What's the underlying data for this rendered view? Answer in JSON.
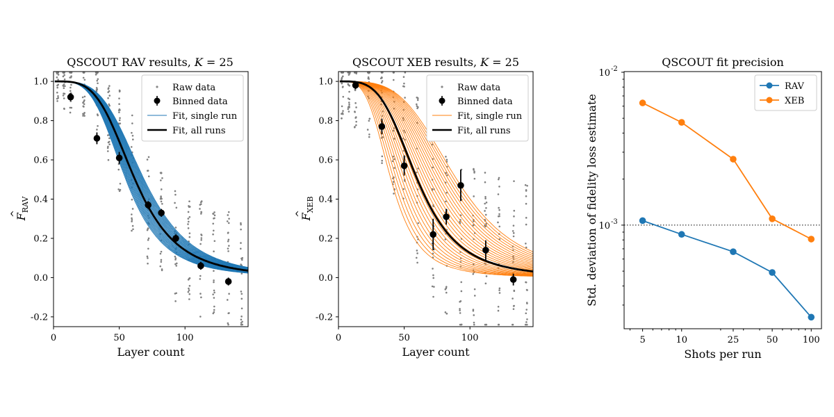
{
  "chart_data": [
    {
      "type": "scatter",
      "title": "QSCOUT RAV results, K = 25",
      "title_main": "QSCOUT RAV results, ",
      "title_k": "K",
      "title_tail": " = 25",
      "xlabel": "Layer count",
      "ylabel_base": "F",
      "ylabel_sub": "RAV",
      "xlim": [
        0,
        148
      ],
      "ylim": [
        -0.25,
        1.05
      ],
      "xticks": [
        0,
        50,
        100
      ],
      "xtick_labels": [
        "0",
        "50",
        "100"
      ],
      "yticks": [
        -0.2,
        0.0,
        0.2,
        0.4,
        0.6,
        0.8,
        1.0
      ],
      "ytick_labels": [
        "-0.2",
        "0.0",
        "0.2",
        "0.4",
        "0.6",
        "0.8",
        "1.0"
      ],
      "fit_color": "#1f77b4",
      "legend": [
        "Raw data",
        "Binned data",
        "Fit, single run",
        "Fit, all runs"
      ],
      "binned": {
        "x": [
          13,
          33,
          50,
          72,
          82,
          93,
          112,
          133
        ],
        "y": [
          0.92,
          0.71,
          0.61,
          0.37,
          0.33,
          0.2,
          0.06,
          -0.02
        ],
        "err": [
          0.02,
          0.03,
          0.03,
          0.02,
          0.02,
          0.02,
          0.02,
          0.02
        ]
      },
      "fit_all": {
        "x0": 62,
        "s": 1.9
      },
      "fit_single": {
        "x0_min": 55,
        "x0_max": 69,
        "count": 25,
        "s": 1.9
      },
      "raw_x": [
        3,
        8,
        13,
        23,
        33,
        42,
        50,
        60,
        72,
        82,
        93,
        103,
        112,
        122,
        133,
        143
      ],
      "raw_noise": 0.3
    },
    {
      "type": "scatter",
      "title": "QSCOUT XEB results, K = 25",
      "title_main": "QSCOUT XEB results, ",
      "title_k": "K",
      "title_tail": " = 25",
      "xlabel": "Layer count",
      "ylabel_base": "F",
      "ylabel_sub": "XEB",
      "xlim": [
        0,
        148
      ],
      "ylim": [
        -0.25,
        1.05
      ],
      "xticks": [
        0,
        50,
        100
      ],
      "xtick_labels": [
        "0",
        "50",
        "100"
      ],
      "yticks": [
        -0.2,
        0.0,
        0.2,
        0.4,
        0.6,
        0.8,
        1.0
      ],
      "ytick_labels": [
        "-0.2",
        "0.0",
        "0.2",
        "0.4",
        "0.6",
        "0.8",
        "1.0"
      ],
      "fit_color": "#ff7f0e",
      "legend": [
        "Raw data",
        "Binned data",
        "Fit, single run",
        "Fit, all runs"
      ],
      "binned": {
        "x": [
          13,
          33,
          50,
          72,
          82,
          93,
          112,
          133
        ],
        "y": [
          0.98,
          0.77,
          0.57,
          0.22,
          0.31,
          0.47,
          0.14,
          -0.01
        ],
        "err": [
          0.02,
          0.04,
          0.05,
          0.08,
          0.04,
          0.08,
          0.05,
          0.03
        ]
      },
      "fit_all": {
        "x0": 60,
        "s": 1.9
      },
      "fit_single": {
        "x0_min": 40,
        "x0_max": 90,
        "count": 25,
        "s": 1.9
      },
      "raw_x": [
        3,
        8,
        13,
        23,
        33,
        42,
        50,
        60,
        72,
        82,
        93,
        103,
        112,
        122,
        133,
        143
      ],
      "raw_noise": 0.45
    },
    {
      "type": "line",
      "title": "QSCOUT fit precision",
      "xlabel": "Shots per run",
      "ylabel": "Std. deviation of fidelity loss estimate",
      "xscale": "log",
      "yscale": "log",
      "xlim": [
        3.6,
        120
      ],
      "ylim": [
        0.00021,
        0.0101
      ],
      "x": [
        5,
        10,
        25,
        50,
        100
      ],
      "xtick_labels": [
        "5",
        "10",
        "25",
        "50",
        "100"
      ],
      "ytick_labels": [
        {
          "base": "10",
          "exp": "-3"
        },
        {
          "base": "10",
          "exp": "-2"
        }
      ],
      "reference_line": 0.001,
      "legend_position": "top-right",
      "series": [
        {
          "name": "RAV",
          "color": "#1f77b4",
          "values": [
            0.00107,
            0.00087,
            0.00067,
            0.00049,
            0.00025
          ]
        },
        {
          "name": "XEB",
          "color": "#ff7f0e",
          "values": [
            0.0063,
            0.0047,
            0.0027,
            0.0011,
            0.00081
          ]
        }
      ]
    }
  ]
}
